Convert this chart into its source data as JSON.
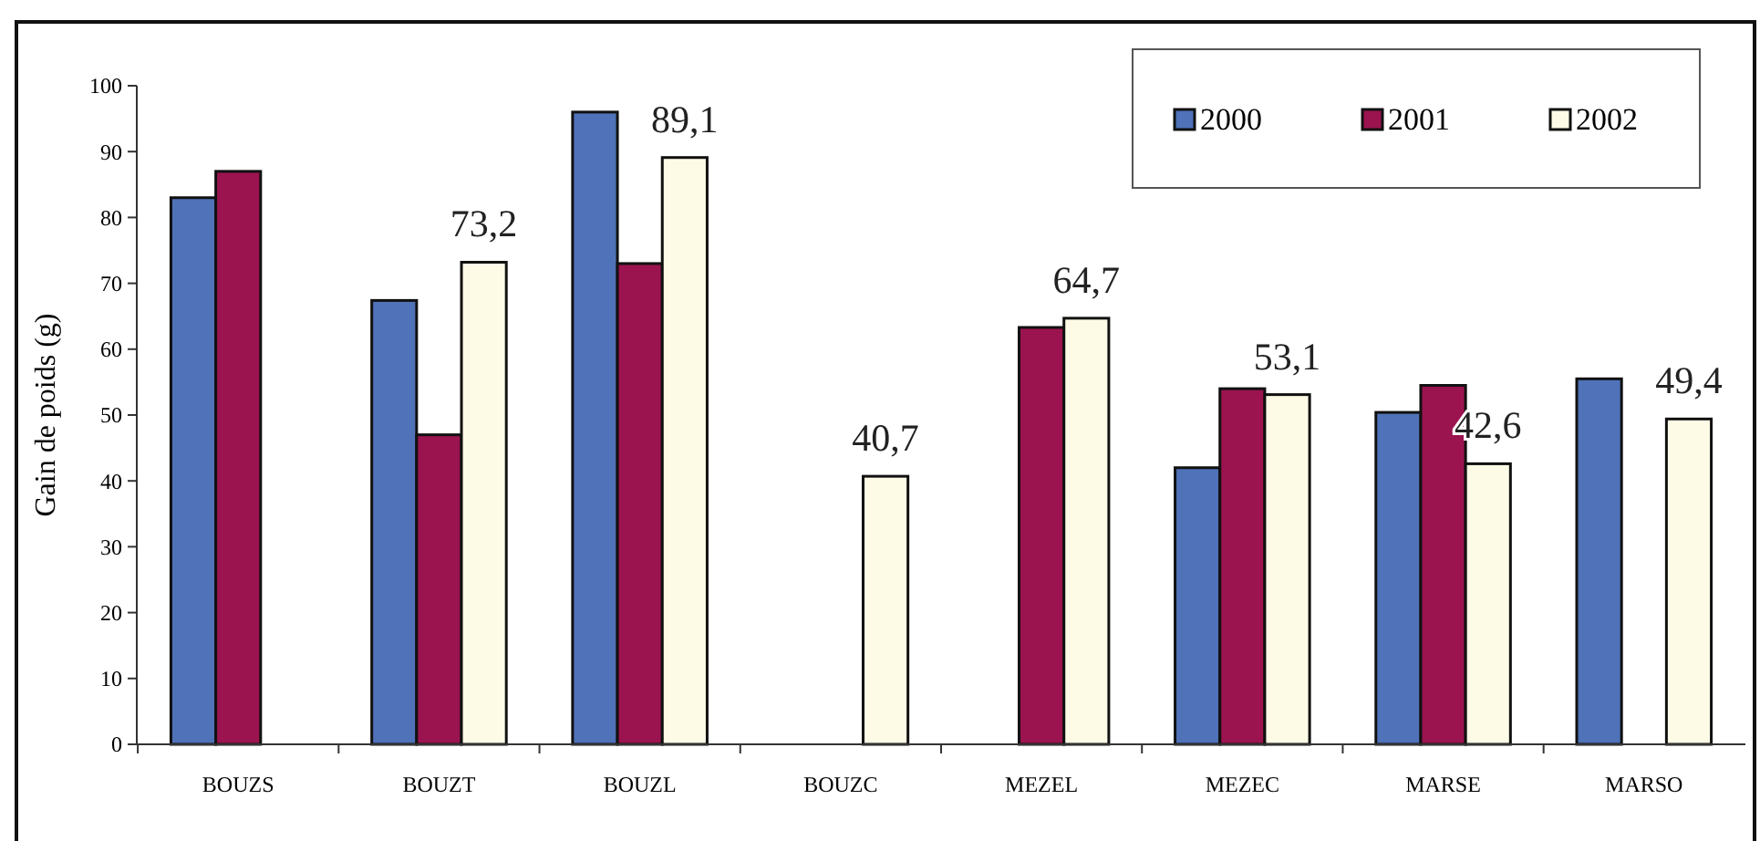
{
  "chart_data": {
    "type": "bar",
    "ylabel": "Gain de poids (g)",
    "categories": [
      "BOUZS",
      "BOUZT",
      "BOUZL",
      "BOUZC",
      "MEZEL",
      "MEZEC",
      "MARSE",
      "MARSO"
    ],
    "series": [
      {
        "name": "2000",
        "color": "#4f72b8",
        "values": [
          83,
          67.4,
          96,
          null,
          null,
          42,
          50.4,
          55.5
        ]
      },
      {
        "name": "2001",
        "color": "#9b1450",
        "values": [
          87,
          47,
          73,
          null,
          63.3,
          54,
          54.5,
          null
        ]
      },
      {
        "name": "2002",
        "color": "#fdfbe6",
        "values": [
          null,
          73.2,
          89.1,
          40.7,
          64.7,
          53.1,
          42.6,
          49.4
        ],
        "value_labels": [
          null,
          "73,2",
          "89,1",
          "40,7",
          "64,7",
          "53,1",
          "42,6",
          "49,4"
        ]
      }
    ],
    "ylim": [
      0,
      100
    ],
    "yticks": [
      0,
      10,
      20,
      30,
      40,
      50,
      60,
      70,
      80,
      90,
      100
    ],
    "grid": false,
    "legend": "top right"
  }
}
